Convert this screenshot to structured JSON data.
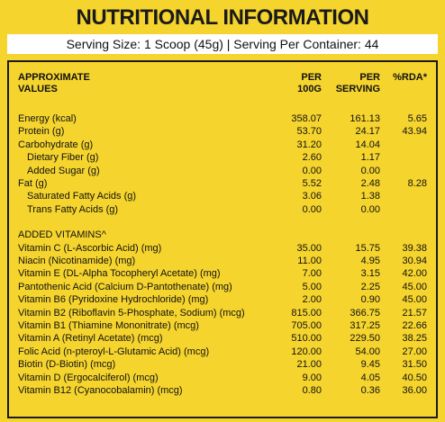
{
  "title": "NUTRITIONAL INFORMATION",
  "serving": "Serving Size: 1 Scoop (45g) | Serving Per Container: 44",
  "table": {
    "header": [
      "APPROXIMATE VALUES",
      "PER 100G",
      "PER SERVING",
      "%RDA*"
    ],
    "sections": [
      {
        "rows": [
          {
            "label": "Energy (kcal)",
            "cells": [
              "358.07",
              "161.13",
              "5.65"
            ]
          },
          {
            "label": "Protein (g)",
            "cells": [
              "53.70",
              "24.17",
              "43.94"
            ]
          },
          {
            "label": "Carbohydrate (g)",
            "cells": [
              "31.20",
              "14.04",
              null
            ],
            "subrows": [
              {
                "label": "Dietary Fiber (g)",
                "cells": [
                  "2.60",
                  "1.17",
                  null
                ]
              },
              {
                "label": "Added Sugar (g)",
                "cells": [
                  "0.00",
                  "0.00",
                  null
                ]
              }
            ]
          },
          {
            "label": "Fat (g)",
            "cells": [
              "5.52",
              "2.48",
              "8.28"
            ],
            "subrows": [
              {
                "label": "Saturated Fatty Acids (g)",
                "cells": [
                  "3.06",
                  "1.38",
                  null
                ]
              },
              {
                "label": "Trans Fatty Acids (g)",
                "cells": [
                  "0.00",
                  "0.00",
                  null
                ]
              }
            ]
          }
        ]
      },
      {
        "heading": "ADDED VITAMINS^",
        "rows": [
          {
            "label": "Vitamin C (L-Ascorbic Acid) (mg)",
            "cells": [
              "35.00",
              "15.75",
              "39.38"
            ]
          },
          {
            "label": "Niacin (Nicotinamide) (mg)",
            "cells": [
              "11.00",
              "4.95",
              "30.94"
            ]
          },
          {
            "label": "Vitamin E (DL-Alpha Tocopheryl Acetate) (mg)",
            "cells": [
              "7.00",
              "3.15",
              "42.00"
            ]
          },
          {
            "label": "Pantothenic Acid (Calcium D-Pantothenate) (mg)",
            "cells": [
              "5.00",
              "2.25",
              "45.00"
            ]
          },
          {
            "label": "Vitamin B6 (Pyridoxine Hydrochloride) (mg)",
            "cells": [
              "2.00",
              "0.90",
              "45.00"
            ]
          },
          {
            "label": "Vitamin B2 (Riboflavin 5-Phosphate, Sodium) (mcg)",
            "cells": [
              "815.00",
              "366.75",
              "21.57"
            ]
          },
          {
            "label": "Vitamin B1 (Thiamine Mononitrate) (mcg)",
            "cells": [
              "705.00",
              "317.25",
              "22.66"
            ]
          },
          {
            "label": "Vitamin A (Retinyl Acetate) (mcg)",
            "cells": [
              "510.00",
              "229.50",
              "38.25"
            ]
          },
          {
            "label": "Folic Acid (n-pteroyl-L-Glutamic Acid) (mcg)",
            "cells": [
              "120.00",
              "54.00",
              "27.00"
            ]
          },
          {
            "label": "Biotin (D-Biotin) (mcg)",
            "cells": [
              "21.00",
              "9.45",
              "31.50"
            ]
          },
          {
            "label": "Vitamin D (Ergocalciferol) (mcg)",
            "cells": [
              "9.00",
              "4.05",
              "40.50"
            ]
          },
          {
            "label": "Vitamin B12 (Cyanocobalamin) (mcg)",
            "cells": [
              "0.80",
              "0.36",
              "36.00"
            ]
          }
        ]
      }
    ]
  }
}
